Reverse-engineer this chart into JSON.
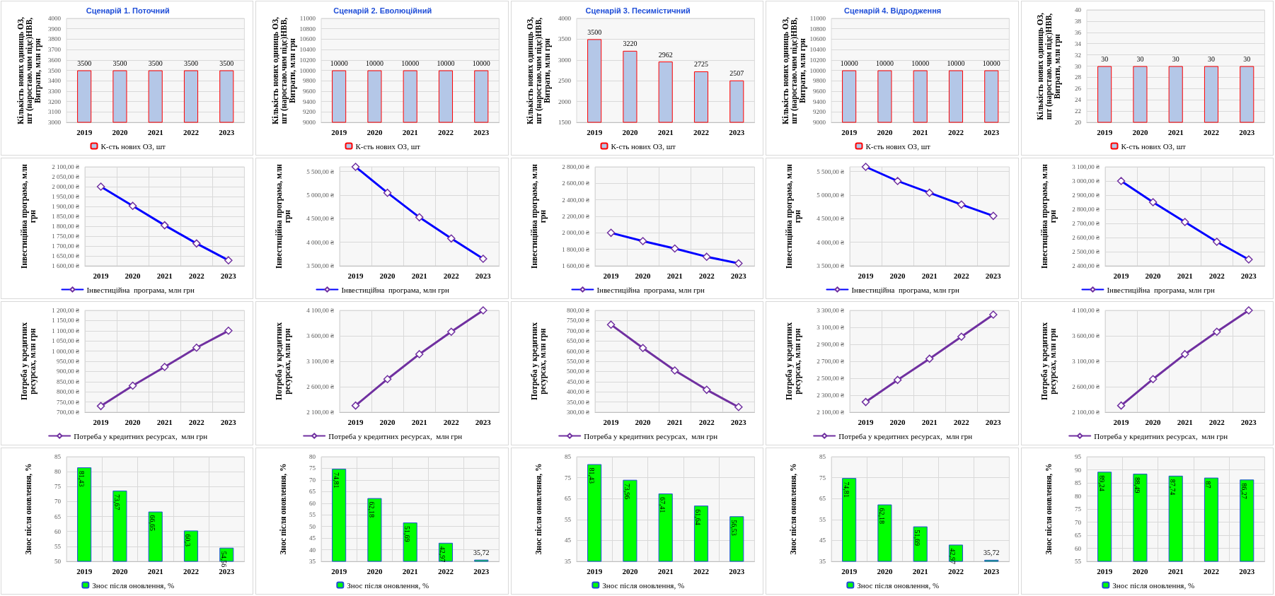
{
  "chart_data": [
    {
      "type": "bar",
      "title": "Сценарій 1. Поточний",
      "ylabel": "Кількість нових одиниць ОЗ, шт (наростаю.чим підс)НВВ, Витрати, млн грн",
      "categories": [
        "2019",
        "2020",
        "2021",
        "2022",
        "2023"
      ],
      "series": [
        {
          "name": "К-сть нових ОЗ, шт",
          "color": "#b4c7e7",
          "values": [
            3500,
            3500,
            3500,
            3500,
            3500
          ]
        }
      ],
      "ylim": [
        3000,
        4000
      ],
      "yticks": [
        3000,
        3100,
        3200,
        3300,
        3400,
        3500,
        3600,
        3700,
        3800,
        3900,
        4000
      ],
      "grid": "y",
      "legend": "bottom",
      "data_labels": true
    },
    {
      "type": "bar",
      "title": "Сценарій 2. Еволюційний",
      "ylabel": "Кількість нових одиниць ОЗ, шт (наростаю.чим підс)НВВ, Витрати, млн грн",
      "categories": [
        "2019",
        "2020",
        "2021",
        "2022",
        "2023"
      ],
      "series": [
        {
          "name": "К-сть нових ОЗ, шт",
          "color": "#b4c7e7",
          "values": [
            10000,
            10000,
            10000,
            10000,
            10000
          ]
        }
      ],
      "ylim": [
        9000,
        11000
      ],
      "yticks": [
        9000,
        9200,
        9400,
        9600,
        9800,
        10000,
        10200,
        10400,
        10600,
        10800,
        11000
      ],
      "grid": "y",
      "legend": "bottom",
      "data_labels": true
    },
    {
      "type": "bar",
      "title": "Сценарій 3. Песимістичний",
      "ylabel": "Кількість нових одиниць ОЗ, шт (наростаю.чим підс)НВВ, Витрати, млн грн",
      "categories": [
        "2019",
        "2020",
        "2021",
        "2022",
        "2023"
      ],
      "series": [
        {
          "name": "К-сть нових ОЗ, шт",
          "color": "#b4c7e7",
          "values": [
            3500,
            3220,
            2962,
            2725,
            2507
          ]
        }
      ],
      "ylim": [
        1500,
        4000
      ],
      "yticks": [
        1500,
        2000,
        2500,
        3000,
        3500,
        4000
      ],
      "grid": "y",
      "legend": "bottom",
      "data_labels": true
    },
    {
      "type": "bar",
      "title": "Сценарій 4. Відродження",
      "ylabel": "Кількість нових одиниць ОЗ, шт (наростаю.чим підс)НВВ, Витрати, млн грн",
      "categories": [
        "2019",
        "2020",
        "2021",
        "2022",
        "2023"
      ],
      "series": [
        {
          "name": "К-сть нових ОЗ, шт",
          "color": "#b4c7e7",
          "values": [
            10000,
            10000,
            10000,
            10000,
            10000
          ]
        }
      ],
      "ylim": [
        9000,
        11000
      ],
      "yticks": [
        9000,
        9200,
        9400,
        9600,
        9800,
        10000,
        10200,
        10400,
        10600,
        10800,
        11000
      ],
      "grid": "y",
      "legend": "bottom",
      "data_labels": true
    },
    {
      "type": "bar",
      "ylabel": "Кількість нових одиниць ОЗ, шт (наростаю.чим підс)НВВ, Витрати, млн грн",
      "categories": [
        "2019",
        "2020",
        "2021",
        "2022",
        "2023"
      ],
      "series": [
        {
          "name": "К-сть нових ОЗ, шт",
          "color": "#b4c7e7",
          "values": [
            30,
            30,
            30,
            30,
            30
          ]
        }
      ],
      "ylim": [
        20,
        40
      ],
      "yticks": [
        20,
        22,
        24,
        26,
        28,
        30,
        32,
        34,
        36,
        38,
        40
      ],
      "grid": "y",
      "legend": "bottom",
      "data_labels": true
    },
    {
      "type": "line",
      "ylabel": "Інвестиційна програма, млн грн",
      "categories": [
        "2019",
        "2020",
        "2021",
        "2022",
        "2023"
      ],
      "series": [
        {
          "name": "Інвестиційна  програма, млн грн",
          "color": "#0000ff",
          "values": [
            2000,
            1903,
            1805,
            1713,
            1628
          ]
        }
      ],
      "ylim": [
        1600,
        2100
      ],
      "yticks": [
        {
          "value": 1600,
          "label": "1 600,00 ₴"
        },
        {
          "value": 1650,
          "label": "1 650,00 ₴"
        },
        {
          "value": 1700,
          "label": "1 700,00 ₴"
        },
        {
          "value": 1750,
          "label": "1 750,00 ₴"
        },
        {
          "value": 1800,
          "label": "1 800,00 ₴"
        },
        {
          "value": 1850,
          "label": "1 850,00 ₴"
        },
        {
          "value": 1900,
          "label": "1 900,00 ₴"
        },
        {
          "value": 1950,
          "label": "1 950,00 ₴"
        },
        {
          "value": 2000,
          "label": "2 000,00 ₴"
        },
        {
          "value": 2050,
          "label": "2 050,00 ₴"
        },
        {
          "value": 2100,
          "label": "2 100,00 ₴"
        }
      ],
      "grid": true,
      "legend": "bottom",
      "marker": "diamond"
    },
    {
      "type": "line",
      "ylabel": "Інвестиційна програма, млн грн",
      "categories": [
        "2019",
        "2020",
        "2021",
        "2022",
        "2023"
      ],
      "series": [
        {
          "name": "Інвестиційна  програма, млн грн",
          "color": "#0000ff",
          "values": [
            5600,
            5050,
            4530,
            4080,
            3650
          ]
        }
      ],
      "ylim": [
        3500,
        5600
      ],
      "yticks": [
        {
          "value": 3500,
          "label": "3 500,00 ₴"
        },
        {
          "value": 4000,
          "label": "4 000,00 ₴"
        },
        {
          "value": 4500,
          "label": "4 500,00 ₴"
        },
        {
          "value": 5000,
          "label": "5 000,00 ₴"
        },
        {
          "value": 5500,
          "label": "5 500,00 ₴"
        }
      ],
      "grid": true,
      "legend": "bottom",
      "marker": "diamond"
    },
    {
      "type": "line",
      "ylabel": "Інвестиційна програма, млн грн",
      "categories": [
        "2019",
        "2020",
        "2021",
        "2022",
        "2023"
      ],
      "series": [
        {
          "name": "Інвестиційна  програма, млн грн",
          "color": "#0000ff",
          "values": [
            2000,
            1900,
            1810,
            1710,
            1630
          ]
        }
      ],
      "ylim": [
        1600,
        2800
      ],
      "yticks": [
        {
          "value": 1600,
          "label": "1 600,00 ₴"
        },
        {
          "value": 1800,
          "label": "1 800,00 ₴"
        },
        {
          "value": 2000,
          "label": "2 000,00 ₴"
        },
        {
          "value": 2200,
          "label": "2 200,00 ₴"
        },
        {
          "value": 2400,
          "label": "2 400,00 ₴"
        },
        {
          "value": 2600,
          "label": "2 600,00 ₴"
        },
        {
          "value": 2800,
          "label": "2 800,00 ₴"
        }
      ],
      "grid": true,
      "legend": "bottom",
      "marker": "diamond"
    },
    {
      "type": "line",
      "ylabel": "Інвестиційна програма, млн грн",
      "categories": [
        "2019",
        "2020",
        "2021",
        "2022",
        "2023"
      ],
      "series": [
        {
          "name": "Інвестиційна  програма, млн грн",
          "color": "#0000ff",
          "values": [
            5600,
            5300,
            5050,
            4800,
            4560
          ]
        }
      ],
      "ylim": [
        3500,
        5600
      ],
      "yticks": [
        {
          "value": 3500,
          "label": "3 500,00 ₴"
        },
        {
          "value": 4000,
          "label": "4 000,00 ₴"
        },
        {
          "value": 4500,
          "label": "4 500,00 ₴"
        },
        {
          "value": 5000,
          "label": "5 000,00 ₴"
        },
        {
          "value": 5500,
          "label": "5 500,00 ₴"
        }
      ],
      "grid": true,
      "legend": "bottom",
      "marker": "diamond"
    },
    {
      "type": "line",
      "ylabel": "Інвестиційна програма, млн грн",
      "categories": [
        "2019",
        "2020",
        "2021",
        "2022",
        "2023"
      ],
      "series": [
        {
          "name": "Інвестиційна  програма, млн грн",
          "color": "#0000ff",
          "values": [
            3000,
            2850,
            2710,
            2570,
            2445
          ]
        }
      ],
      "ylim": [
        2400,
        3100
      ],
      "yticks": [
        {
          "value": 2400,
          "label": "2 400,00 ₴"
        },
        {
          "value": 2500,
          "label": "2 500,00 ₴"
        },
        {
          "value": 2600,
          "label": "2 600,00 ₴"
        },
        {
          "value": 2700,
          "label": "2 700,00 ₴"
        },
        {
          "value": 2800,
          "label": "2 800,00 ₴"
        },
        {
          "value": 2900,
          "label": "2 900,00 ₴"
        },
        {
          "value": 3000,
          "label": "3 000,00 ₴"
        },
        {
          "value": 3100,
          "label": "3 100,00 ₴"
        }
      ],
      "grid": true,
      "legend": "bottom",
      "marker": "diamond"
    },
    {
      "type": "line",
      "ylabel": "Потреба у кредитних ресурсах, млн грн",
      "categories": [
        "2019",
        "2020",
        "2021",
        "2022",
        "2023"
      ],
      "series": [
        {
          "name": "Потреба у кредитних ресурсах,  млн грн",
          "color": "#7030a0",
          "values": [
            730,
            830,
            922,
            1017,
            1100
          ]
        }
      ],
      "ylim": [
        700,
        1200
      ],
      "yticks": [
        {
          "value": 700,
          "label": "700,00 ₴"
        },
        {
          "value": 750,
          "label": "750,00 ₴"
        },
        {
          "value": 800,
          "label": "800,00 ₴"
        },
        {
          "value": 850,
          "label": "850,00 ₴"
        },
        {
          "value": 900,
          "label": "900,00 ₴"
        },
        {
          "value": 950,
          "label": "950,00 ₴"
        },
        {
          "value": 1000,
          "label": "1 000,00 ₴"
        },
        {
          "value": 1050,
          "label": "1 050,00 ₴"
        },
        {
          "value": 1100,
          "label": "1 100,00 ₴"
        },
        {
          "value": 1150,
          "label": "1 150,00 ₴"
        },
        {
          "value": 1200,
          "label": "1 200,00 ₴"
        }
      ],
      "grid": true,
      "legend": "bottom",
      "marker": "diamond"
    },
    {
      "type": "line",
      "ylabel": "Потреба у кредитних ресурсах, млн грн",
      "categories": [
        "2019",
        "2020",
        "2021",
        "2022",
        "2023"
      ],
      "series": [
        {
          "name": "Потреба у кредитних ресурсах,  млн грн",
          "color": "#7030a0",
          "values": [
            2230,
            2750,
            3240,
            3680,
            4100
          ]
        }
      ],
      "ylim": [
        2100,
        4100
      ],
      "yticks": [
        {
          "value": 2100,
          "label": "2 100,00 ₴"
        },
        {
          "value": 2600,
          "label": "2 600,00 ₴"
        },
        {
          "value": 3100,
          "label": "3 100,00 ₴"
        },
        {
          "value": 3600,
          "label": "3 600,00 ₴"
        },
        {
          "value": 4100,
          "label": "4 100,00 ₴"
        }
      ],
      "grid": true,
      "legend": "bottom",
      "marker": "diamond"
    },
    {
      "type": "line",
      "ylabel": "Потреба у кредитних ресурсах, млн грн",
      "categories": [
        "2019",
        "2020",
        "2021",
        "2022",
        "2023"
      ],
      "series": [
        {
          "name": "Потреба у кредитних ресурсах,  млн грн",
          "color": "#7030a0",
          "values": [
            730,
            615,
            505,
            410,
            325
          ]
        }
      ],
      "ylim": [
        300,
        800
      ],
      "yticks": [
        {
          "value": 300,
          "label": "300,00 ₴"
        },
        {
          "value": 350,
          "label": "350,00 ₴"
        },
        {
          "value": 400,
          "label": "400,00 ₴"
        },
        {
          "value": 450,
          "label": "450,00 ₴"
        },
        {
          "value": 500,
          "label": "500,00 ₴"
        },
        {
          "value": 550,
          "label": "550,00 ₴"
        },
        {
          "value": 600,
          "label": "600,00 ₴"
        },
        {
          "value": 650,
          "label": "650,00 ₴"
        },
        {
          "value": 700,
          "label": "700,00 ₴"
        },
        {
          "value": 750,
          "label": "750,00 ₴"
        },
        {
          "value": 800,
          "label": "800,00 ₴"
        }
      ],
      "grid": true,
      "legend": "bottom",
      "marker": "diamond"
    },
    {
      "type": "line",
      "ylabel": "Потреба у кредитних ресурсах, млн грн",
      "categories": [
        "2019",
        "2020",
        "2021",
        "2022",
        "2023"
      ],
      "series": [
        {
          "name": "Потреба у кредитних ресурсах,  млн грн",
          "color": "#7030a0",
          "values": [
            2220,
            2480,
            2730,
            2990,
            3250
          ]
        }
      ],
      "ylim": [
        2100,
        3300
      ],
      "yticks": [
        {
          "value": 2100,
          "label": "2 100,00 ₴"
        },
        {
          "value": 2300,
          "label": "2 300,00 ₴"
        },
        {
          "value": 2500,
          "label": "2 500,00 ₴"
        },
        {
          "value": 2700,
          "label": "2 700,00 ₴"
        },
        {
          "value": 2900,
          "label": "2 900,00 ₴"
        },
        {
          "value": 3100,
          "label": "3 100,00 ₴"
        },
        {
          "value": 3300,
          "label": "3 300,00 ₴"
        }
      ],
      "grid": true,
      "legend": "bottom",
      "marker": "diamond"
    },
    {
      "type": "line",
      "ylabel": "Потреба у кредитних ресурсах, млн грн",
      "categories": [
        "2019",
        "2020",
        "2021",
        "2022",
        "2023"
      ],
      "series": [
        {
          "name": "Потреба у кредитних ресурсах,  млн грн",
          "color": "#7030a0",
          "values": [
            2230,
            2750,
            3240,
            3680,
            4100
          ]
        }
      ],
      "ylim": [
        2100,
        4100
      ],
      "yticks": [
        {
          "value": 2100,
          "label": "2 100,00 ₴"
        },
        {
          "value": 2600,
          "label": "2 600,00 ₴"
        },
        {
          "value": 3100,
          "label": "3 100,00 ₴"
        },
        {
          "value": 3600,
          "label": "3 600,00 ₴"
        },
        {
          "value": 4100,
          "label": "4 100,00 ₴"
        }
      ],
      "grid": true,
      "legend": "bottom",
      "marker": "diamond"
    },
    {
      "type": "bar",
      "ylabel": "Знос після оновлення, %",
      "categories": [
        "2019",
        "2020",
        "2021",
        "2022",
        "2023"
      ],
      "series": [
        {
          "name": "Знос після оновлення, %",
          "color": "#00ff00",
          "values": [
            81.43,
            73.67,
            66.65,
            60.3,
            54.56
          ],
          "value_labels": [
            "81,43",
            "73,67",
            "66,65",
            "60,3",
            "54,56"
          ]
        }
      ],
      "ylim": [
        50,
        85
      ],
      "yticks": [
        50,
        55,
        60,
        65,
        70,
        75,
        80,
        85
      ],
      "grid": true,
      "legend": "bottom"
    },
    {
      "type": "bar",
      "ylabel": "Знос після оновлення, %",
      "categories": [
        "2019",
        "2020",
        "2021",
        "2022",
        "2023"
      ],
      "series": [
        {
          "name": "Знос після оновлення, %",
          "color": "#00ff00",
          "values": [
            74.81,
            62.18,
            51.69,
            42.97,
            35.72
          ],
          "value_labels": [
            "74,81",
            "62,18",
            "51,69",
            "42,97",
            "35,72"
          ]
        }
      ],
      "ylim": [
        35,
        80
      ],
      "yticks": [
        35,
        40,
        45,
        50,
        55,
        60,
        65,
        70,
        75,
        80
      ],
      "grid": true,
      "legend": "bottom"
    },
    {
      "type": "bar",
      "ylabel": "Знос після оновлення, %",
      "categories": [
        "2019",
        "2020",
        "2021",
        "2022",
        "2023"
      ],
      "series": [
        {
          "name": "Знос після оновлення, %",
          "color": "#00ff00",
          "values": [
            81.43,
            73.96,
            67.41,
            61.64,
            56.53
          ],
          "value_labels": [
            "81,43",
            "73,96",
            "67,41",
            "61,64",
            "56,53"
          ]
        }
      ],
      "ylim": [
        35,
        85
      ],
      "yticks": [
        35,
        45,
        55,
        65,
        75,
        85
      ],
      "grid": true,
      "legend": "bottom"
    },
    {
      "type": "bar",
      "ylabel": "Знос після оновлення, %",
      "categories": [
        "2019",
        "2020",
        "2021",
        "2022",
        "2023"
      ],
      "series": [
        {
          "name": "Знос після оновлення, %",
          "color": "#00ff00",
          "values": [
            74.81,
            62.18,
            51.69,
            42.97,
            35.72
          ],
          "value_labels": [
            "74,81",
            "62,18",
            "51,69",
            "42,97",
            "35,72"
          ]
        }
      ],
      "ylim": [
        35,
        85
      ],
      "yticks": [
        35,
        45,
        55,
        65,
        75,
        85
      ],
      "grid": true,
      "legend": "bottom"
    },
    {
      "type": "bar",
      "ylabel": "Знос після оновлення, %",
      "categories": [
        "2019",
        "2020",
        "2021",
        "2022",
        "2023"
      ],
      "series": [
        {
          "name": "Знос після оновлення, %",
          "color": "#00ff00",
          "values": [
            89.24,
            88.49,
            87.74,
            87,
            86.27
          ],
          "value_labels": [
            "89,24",
            "88,49",
            "87,74",
            "87",
            "86,27"
          ]
        }
      ],
      "ylim": [
        55,
        95
      ],
      "yticks": [
        55,
        60,
        65,
        70,
        75,
        80,
        85,
        90,
        95
      ],
      "grid": true,
      "legend": "bottom"
    }
  ]
}
